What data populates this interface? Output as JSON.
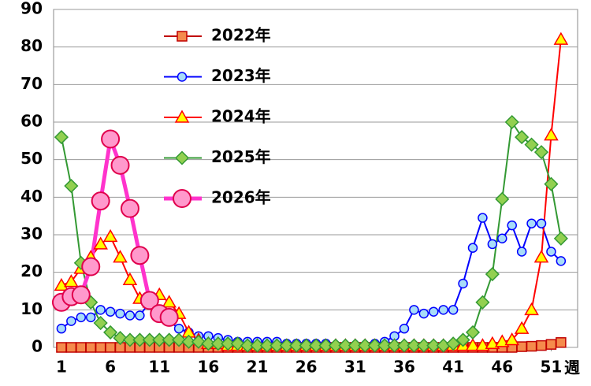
{
  "chart_data": {
    "type": "line",
    "x": [
      1,
      2,
      3,
      4,
      5,
      6,
      7,
      8,
      9,
      10,
      11,
      12,
      13,
      14,
      15,
      16,
      17,
      18,
      19,
      20,
      21,
      22,
      23,
      24,
      25,
      26,
      27,
      28,
      29,
      30,
      31,
      32,
      33,
      34,
      35,
      36,
      37,
      38,
      39,
      40,
      41,
      42,
      43,
      44,
      45,
      46,
      47,
      48,
      49,
      50,
      51,
      52
    ],
    "x_label": "週",
    "xlim": [
      0.2,
      53.7
    ],
    "xticks": [
      1,
      6,
      11,
      16,
      21,
      26,
      31,
      36,
      41,
      46,
      51
    ],
    "ylim": [
      0,
      90
    ],
    "yticks": [
      0,
      10,
      20,
      30,
      40,
      50,
      60,
      70,
      80,
      90
    ],
    "grid": true,
    "series": [
      {
        "name": "2022年",
        "color": "#c00000",
        "marker": "square",
        "marker_color": "#f58b4c",
        "values": [
          0,
          0,
          0,
          0,
          0,
          0,
          0,
          0,
          0,
          0,
          0,
          0,
          0,
          0,
          0,
          0,
          0,
          0,
          0,
          0,
          0,
          0,
          0,
          0,
          0,
          0,
          0,
          0,
          0,
          0,
          0,
          0,
          0,
          0,
          0,
          0,
          0,
          0,
          0,
          0,
          0,
          0,
          0,
          0,
          0,
          0,
          0,
          0.2,
          0.3,
          0.5,
          0.8,
          1.3
        ]
      },
      {
        "name": "2023年",
        "color": "#0000ff",
        "marker": "circle",
        "marker_color": "#a8dcf8",
        "values": [
          5,
          7,
          8,
          8,
          10,
          9.5,
          9,
          8.5,
          8.5,
          12,
          8,
          7,
          5,
          4,
          3,
          3,
          2.5,
          2,
          1.5,
          1.5,
          1.5,
          1.5,
          1.5,
          1,
          1,
          1,
          1,
          1,
          0.5,
          0.5,
          0.5,
          0.5,
          1,
          1.5,
          3,
          5,
          10,
          9,
          9.5,
          10,
          10,
          17,
          26.5,
          34.5,
          27.5,
          29,
          32.5,
          25.5,
          33,
          33,
          25.5,
          23
        ]
      },
      {
        "name": "2024年",
        "color": "#ff0000",
        "marker": "triangle",
        "marker_color": "#ffff00",
        "values": [
          16.5,
          17.5,
          21,
          24,
          27.5,
          29.5,
          24,
          18,
          13,
          12,
          14,
          12,
          9,
          4,
          2,
          1,
          1,
          0.5,
          0.5,
          0.5,
          0.5,
          0.5,
          0.5,
          0.5,
          0.5,
          0.5,
          0.5,
          0.5,
          0.5,
          0.5,
          0.5,
          0.5,
          0.5,
          0.5,
          0.5,
          0.5,
          0.5,
          0.5,
          0.5,
          0.5,
          0.5,
          0.5,
          0.5,
          0.5,
          1,
          1.5,
          2,
          5,
          10,
          24,
          56.5,
          82
        ]
      },
      {
        "name": "2025年",
        "color": "#339933",
        "marker": "diamond",
        "marker_color": "#92d050",
        "values": [
          56,
          43,
          22.5,
          12,
          6.5,
          4,
          2.5,
          2,
          2,
          2,
          2,
          2,
          2,
          1.5,
          1.5,
          1,
          1,
          1,
          1,
          0.5,
          0.5,
          0.5,
          0.5,
          0.5,
          0.5,
          0.5,
          0.5,
          0.5,
          0.5,
          0.5,
          0.5,
          0.5,
          0.5,
          0.5,
          0.5,
          0.5,
          0.5,
          0.5,
          0.5,
          0.5,
          1,
          2,
          4,
          12,
          19.5,
          39.5,
          60,
          56,
          54,
          52,
          43.5,
          29
        ]
      },
      {
        "name": "2026年",
        "color": "#ff33cc",
        "marker": "big-circle",
        "marker_color": "#ff99cc",
        "values": [
          12,
          13.5,
          14,
          21.5,
          39,
          55.5,
          48.5,
          37,
          24.5,
          12.5,
          9,
          8,
          null,
          null,
          null,
          null,
          null,
          null,
          null,
          null,
          null,
          null,
          null,
          null,
          null,
          null,
          null,
          null,
          null,
          null,
          null,
          null,
          null,
          null,
          null,
          null,
          null,
          null,
          null,
          null,
          null,
          null,
          null,
          null,
          null,
          null,
          null,
          null,
          null,
          null,
          null,
          null
        ]
      }
    ]
  }
}
